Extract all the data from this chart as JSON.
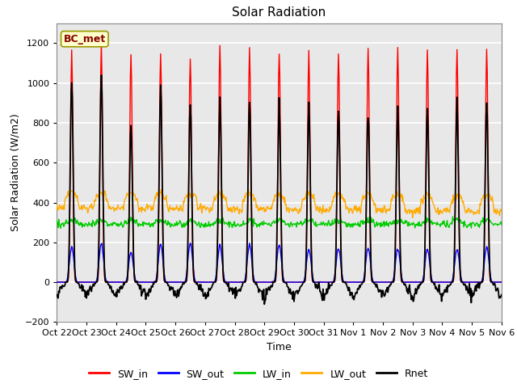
{
  "title": "Solar Radiation",
  "ylabel": "Solar Radiation (W/m2)",
  "xlabel": "Time",
  "ylim": [
    -200,
    1300
  ],
  "yticks": [
    -200,
    0,
    200,
    400,
    600,
    800,
    1000,
    1200
  ],
  "xtick_labels": [
    "Oct 22",
    "Oct 23",
    "Oct 24",
    "Oct 25",
    "Oct 26",
    "Oct 27",
    "Oct 28",
    "Oct 29",
    "Oct 30",
    "Oct 31",
    "Nov 1",
    "Nov 2",
    "Nov 3",
    "Nov 4",
    "Nov 5",
    "Nov 6"
  ],
  "series_colors": {
    "SW_in": "#ff0000",
    "SW_out": "#0000ff",
    "LW_in": "#00cc00",
    "LW_out": "#ffaa00",
    "Rnet": "#000000"
  },
  "label_box_text": "BC_met",
  "label_box_facecolor": "#ffffcc",
  "label_box_edgecolor": "#999900",
  "label_box_textcolor": "#880000",
  "plot_bg_color": "#e8e8e8",
  "fig_bg_color": "#ffffff",
  "grid_color": "#ffffff",
  "title_fontsize": 11,
  "axis_label_fontsize": 9,
  "tick_fontsize": 8,
  "line_width": 1.0,
  "peak_SW_in": [
    1160,
    1180,
    1160,
    1150,
    1130,
    1185,
    1190,
    1170,
    1160,
    1160,
    1170,
    1170,
    1165,
    1170,
    1175
  ],
  "peak_SW_out": [
    175,
    190,
    150,
    190,
    195,
    185,
    188,
    185,
    165,
    170,
    170,
    168,
    165,
    170,
    175
  ],
  "peak_Rnet": [
    1010,
    1030,
    780,
    970,
    900,
    900,
    895,
    890,
    885,
    885,
    860,
    875,
    865,
    895,
    905
  ],
  "base_LW_in": 290,
  "base_LW_out": 355,
  "lw_in_ampl": 20,
  "lw_out_ampl": 80
}
